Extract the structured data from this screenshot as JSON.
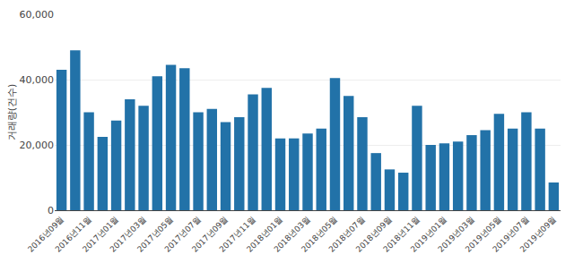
{
  "chart_data": {
    "type": "bar",
    "ylabel": "거래량(건수)",
    "categories": [
      "2016년09월",
      null,
      "2016년11월",
      null,
      "2017년01월",
      null,
      "2017년03월",
      null,
      "2017년05월",
      null,
      "2017년07월",
      null,
      "2017년09월",
      null,
      "2017년11월",
      null,
      "2018년01월",
      null,
      "2018년03월",
      null,
      "2018년05월",
      null,
      "2018년07월",
      null,
      "2018년09월",
      null,
      "2018년11월",
      null,
      "2019년01월",
      null,
      "2019년03월",
      null,
      "2019년05월",
      null,
      "2019년07월",
      null,
      "2019년09월"
    ],
    "values": [
      43000,
      49000,
      30000,
      22500,
      27500,
      34000,
      32000,
      41000,
      44500,
      43500,
      30000,
      31000,
      27000,
      28500,
      35500,
      37500,
      22000,
      22000,
      23500,
      25000,
      40500,
      35000,
      28500,
      17500,
      12500,
      11500,
      32000,
      20000,
      20500,
      21000,
      23000,
      24500,
      29500,
      25000,
      30000,
      25000,
      8500
    ],
    "color": "#2272a8",
    "ylim": [
      0,
      60000
    ],
    "yticks": [
      0,
      {
        "value": 20000,
        "label": "20,000"
      },
      {
        "value": 40000,
        "label": "40,000"
      },
      {
        "value": 60000,
        "label": "60,000"
      }
    ],
    "grid": true
  }
}
